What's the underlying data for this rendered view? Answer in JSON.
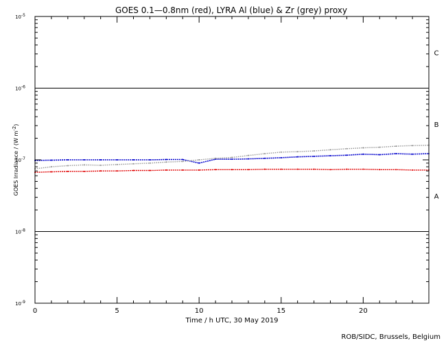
{
  "chart_data": {
    "type": "scatter",
    "title": "GOES 0.1—0.8nm (red), LYRA Al (blue) & Zr (grey) proxy",
    "xlabel": "Time / h UTC, 30 May 2019",
    "ylabel_text": "GOES Irradiance / (W m",
    "ylabel_exp": "-2",
    "ylabel_close": ")",
    "xlim": [
      0,
      24
    ],
    "ylim": [
      1e-09,
      1e-05
    ],
    "yscale": "log",
    "xticks": [
      0,
      5,
      10,
      15,
      20
    ],
    "xtick_labels": [
      "0",
      "5",
      "10",
      "15",
      "20"
    ],
    "yticks": [
      1e-09,
      1e-08,
      1e-07,
      1e-06,
      1e-05
    ],
    "ytick_base": "10",
    "ytick_exponents": [
      "-9",
      "-8",
      "-7",
      "-6",
      "-5"
    ],
    "class_lines": [
      1e-08,
      1e-06
    ],
    "flare_classes": [
      {
        "label": "A",
        "value": 3.16e-08
      },
      {
        "label": "B",
        "value": 3.16e-07
      },
      {
        "label": "C",
        "value": 3.16e-06
      }
    ],
    "grid": false,
    "series": [
      {
        "color": "#e00000",
        "x": [
          0,
          1,
          2,
          3,
          4,
          5,
          6,
          7,
          8,
          9,
          10,
          11,
          12,
          13,
          14,
          15,
          16,
          17,
          18,
          19,
          20,
          21,
          22,
          23,
          24
        ],
        "y": [
          6.7e-08,
          6.8e-08,
          6.9e-08,
          6.9e-08,
          7e-08,
          7e-08,
          7.1e-08,
          7.1e-08,
          7.2e-08,
          7.2e-08,
          7.2e-08,
          7.3e-08,
          7.3e-08,
          7.3e-08,
          7.4e-08,
          7.4e-08,
          7.4e-08,
          7.4e-08,
          7.3e-08,
          7.4e-08,
          7.4e-08,
          7.3e-08,
          7.3e-08,
          7.2e-08,
          7.2e-08
        ]
      },
      {
        "color": "#0000cc",
        "x": [
          0,
          1,
          2,
          3,
          4,
          5,
          6,
          7,
          8,
          9,
          10,
          11,
          12,
          13,
          14,
          15,
          16,
          17,
          18,
          19,
          20,
          21,
          22,
          23,
          24
        ],
        "y": [
          9.8e-08,
          9.9e-08,
          1e-07,
          1e-07,
          1e-07,
          1e-07,
          1e-07,
          1e-07,
          1.01e-07,
          1.01e-07,
          9e-08,
          1.02e-07,
          1.02e-07,
          1.03e-07,
          1.05e-07,
          1.07e-07,
          1.1e-07,
          1.12e-07,
          1.14e-07,
          1.16e-07,
          1.2e-07,
          1.18e-07,
          1.22e-07,
          1.2e-07,
          1.22e-07
        ]
      },
      {
        "color": "#909090",
        "x": [
          0,
          1,
          2,
          3,
          4,
          5,
          6,
          7,
          8,
          9,
          10,
          11,
          12,
          13,
          14,
          15,
          16,
          17,
          18,
          19,
          20,
          21,
          22,
          23,
          24
        ],
        "y": [
          7.5e-08,
          8e-08,
          8.3e-08,
          8.5e-08,
          8.4e-08,
          8.6e-08,
          8.8e-08,
          9e-08,
          9.3e-08,
          9.5e-08,
          1e-07,
          1.05e-07,
          1.08e-07,
          1.15e-07,
          1.22e-07,
          1.28e-07,
          1.3e-07,
          1.33e-07,
          1.38e-07,
          1.43e-07,
          1.47e-07,
          1.5e-07,
          1.55e-07,
          1.58e-07,
          1.6e-07
        ]
      }
    ]
  },
  "credit": "ROB/SIDC, Brussels, Belgium"
}
